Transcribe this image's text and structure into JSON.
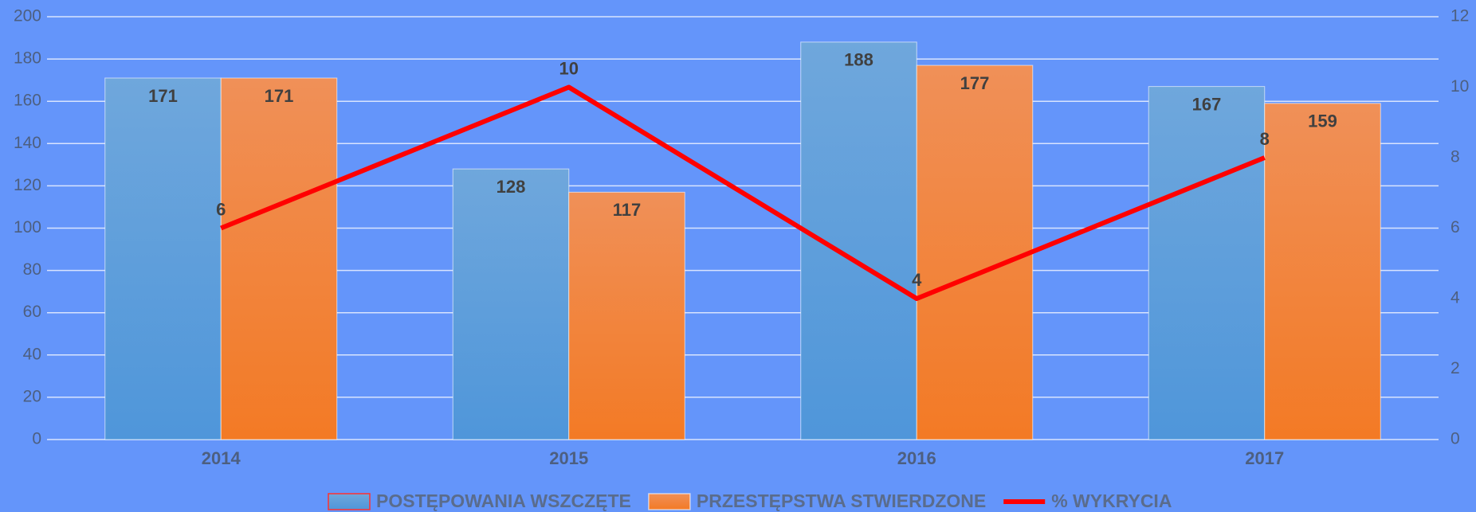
{
  "chart_data": {
    "type": "bar",
    "categories": [
      "2014",
      "2015",
      "2016",
      "2017"
    ],
    "series": [
      {
        "name": "POSTĘPOWANIA WSZCZĘTE",
        "type": "bar",
        "color": "#5b9bd5",
        "values": [
          171,
          128,
          188,
          167
        ]
      },
      {
        "name": "PRZESTĘPSTWA STWIERDZONE",
        "type": "bar",
        "color": "#ed7d31",
        "values": [
          171,
          117,
          177,
          159
        ]
      },
      {
        "name": "% WYKRYCIA",
        "type": "line",
        "axis": "y2",
        "color": "#ff0000",
        "values": [
          6,
          10,
          4,
          8
        ]
      }
    ],
    "ylim": [
      0,
      200
    ],
    "yticks": [
      0,
      20,
      40,
      60,
      80,
      100,
      120,
      140,
      160,
      180,
      200
    ],
    "y2lim": [
      0,
      12
    ],
    "y2ticks": [
      0,
      2,
      4,
      6,
      8,
      10,
      12
    ],
    "grid": true,
    "legend": "bottom"
  }
}
